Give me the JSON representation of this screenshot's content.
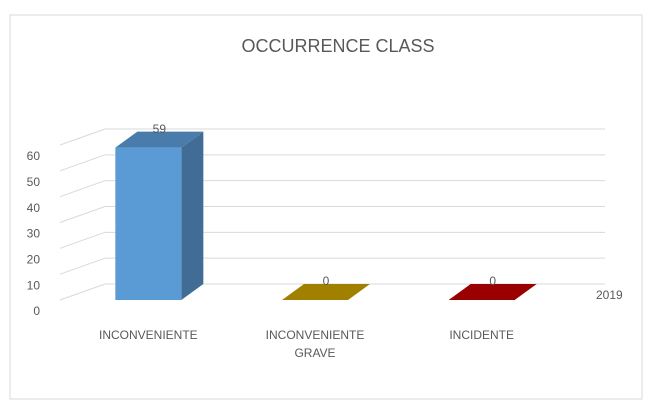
{
  "chart_data": {
    "type": "bar3d",
    "title": "OCCURRENCE CLASS",
    "categories": [
      "INCONVENIENTE",
      "INCONVENIENTE GRAVE",
      "INCIDENTE"
    ],
    "series": [
      {
        "name": "2019",
        "colors": [
          "#5b9bd5",
          "#c9a000",
          "#c00000"
        ],
        "values": [
          59,
          0,
          0
        ]
      }
    ],
    "ylim": [
      0,
      60
    ],
    "yticks": [
      0,
      10,
      20,
      30,
      40,
      50,
      60
    ],
    "grid": true,
    "legend": "right"
  }
}
